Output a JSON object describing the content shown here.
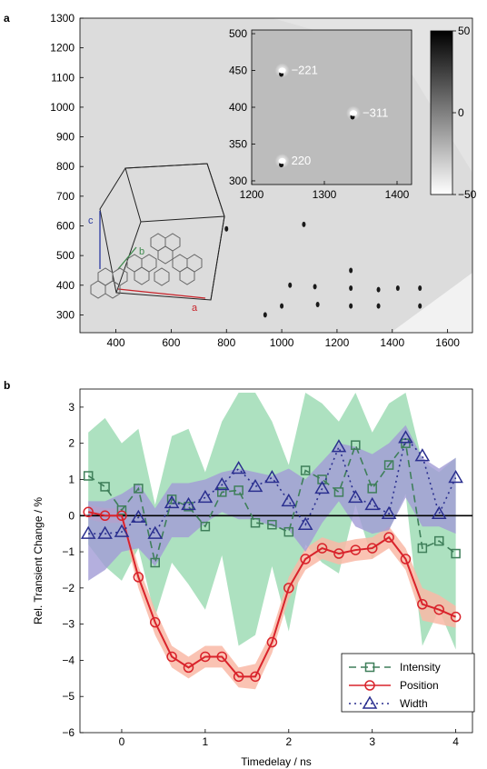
{
  "chart_data": [
    {
      "panel": "a",
      "type": "heatmap",
      "x_ticks": [
        400,
        600,
        800,
        1000,
        1200,
        1400,
        1600
      ],
      "y_ticks": [
        300,
        400,
        500,
        600,
        700,
        800,
        900,
        1000,
        1100,
        1200,
        1300
      ],
      "xlim": [
        270,
        1690
      ],
      "ylim": [
        240,
        1300
      ],
      "unit_cell_axes": [
        "a",
        "b",
        "c"
      ],
      "spots": [
        {
          "x": 1250,
          "y": 450
        },
        {
          "x": 1250,
          "y": 390
        },
        {
          "x": 1250,
          "y": 330
        },
        {
          "x": 1350,
          "y": 385
        },
        {
          "x": 1350,
          "y": 330
        },
        {
          "x": 1500,
          "y": 390
        },
        {
          "x": 1500,
          "y": 330
        },
        {
          "x": 1420,
          "y": 390
        },
        {
          "x": 1130,
          "y": 335
        },
        {
          "x": 1000,
          "y": 330
        },
        {
          "x": 940,
          "y": 300
        },
        {
          "x": 1030,
          "y": 400
        },
        {
          "x": 1120,
          "y": 395
        },
        {
          "x": 800,
          "y": 590
        },
        {
          "x": 1080,
          "y": 605
        }
      ],
      "inset": {
        "x_ticks": [
          1200,
          1300,
          1400
        ],
        "y_ticks": [
          300,
          350,
          400,
          450,
          500
        ],
        "xlim": [
          1200,
          1420
        ],
        "ylim": [
          295,
          505
        ],
        "peaks": [
          {
            "label": "−221",
            "x": 1242,
            "y": 450
          },
          {
            "label": "−311",
            "x": 1340,
            "y": 392
          },
          {
            "label": "220",
            "x": 1242,
            "y": 327
          }
        ]
      },
      "colorbar": {
        "ticks": [
          50,
          0,
          -50
        ],
        "tick_labels": [
          "50",
          "0",
          "−50"
        ],
        "range": [
          -50,
          50
        ]
      }
    },
    {
      "panel": "b",
      "type": "line",
      "xlabel": "Timedelay / ns",
      "ylabel": "Rel. Transient Change / %",
      "xlim": [
        -0.5,
        4.2
      ],
      "ylim": [
        -6,
        3.5
      ],
      "x_ticks": [
        0,
        1,
        2,
        3,
        4
      ],
      "y_ticks": [
        -6,
        -5,
        -4,
        -3,
        -2,
        -1,
        0,
        1,
        2,
        3
      ],
      "legend_position": "bottom-right",
      "x": [
        -0.4,
        -0.2,
        0,
        0.2,
        0.4,
        0.6,
        0.8,
        1.0,
        1.2,
        1.4,
        1.6,
        1.8,
        2.0,
        2.2,
        2.4,
        2.6,
        2.8,
        3.0,
        3.2,
        3.4,
        3.6,
        3.8,
        4.0
      ],
      "series": [
        {
          "name": "Intensity",
          "color": "#3f7f5a",
          "band_color": "#9fdcb5",
          "marker": "square",
          "values": [
            1.1,
            0.8,
            0.15,
            0.75,
            -1.3,
            0.45,
            0.25,
            -0.3,
            0.65,
            0.7,
            -0.2,
            -0.25,
            -0.45,
            1.25,
            1.0,
            0.65,
            1.95,
            0.75,
            1.4,
            2.0,
            -0.9,
            -0.7,
            -1.05
          ],
          "band_upper": [
            2.3,
            2.7,
            2.0,
            2.4,
            0.3,
            2.2,
            2.4,
            1.2,
            2.6,
            3.4,
            3.4,
            2.6,
            1.4,
            3.4,
            3.1,
            2.6,
            3.4,
            2.3,
            3.1,
            3.4,
            1.5,
            1.2,
            1.6
          ],
          "band_lower": [
            -0.8,
            -1.4,
            -1.8,
            -0.9,
            -2.8,
            -1.3,
            -1.9,
            -2.6,
            -1.1,
            -3.6,
            -3.3,
            -1.4,
            -3.2,
            -0.8,
            -1.3,
            -1.6,
            0.3,
            -1.2,
            -0.4,
            0.6,
            -3.6,
            -2.6,
            -3.7
          ]
        },
        {
          "name": "Position",
          "color": "#d9232b",
          "band_color": "#f9b8a6",
          "marker": "circle",
          "values": [
            0.1,
            0.0,
            0.0,
            -1.7,
            -2.95,
            -3.9,
            -4.2,
            -3.9,
            -3.9,
            -4.45,
            -4.45,
            -3.5,
            -2.0,
            -1.2,
            -0.9,
            -1.05,
            -0.95,
            -0.9,
            -0.6,
            -1.2,
            -2.45,
            -2.6,
            -2.8
          ],
          "band_upper": [
            0.3,
            0.2,
            0.2,
            -1.4,
            -2.6,
            -3.6,
            -3.9,
            -3.6,
            -3.6,
            -4.2,
            -4.1,
            -3.2,
            -1.7,
            -0.9,
            -0.6,
            -0.75,
            -0.65,
            -0.6,
            -0.3,
            -0.9,
            -2.0,
            -2.2,
            -2.5
          ],
          "band_lower": [
            -0.1,
            -0.2,
            -0.2,
            -2.0,
            -3.3,
            -4.2,
            -4.5,
            -4.2,
            -4.2,
            -4.75,
            -4.8,
            -3.8,
            -2.3,
            -1.5,
            -1.2,
            -1.35,
            -1.25,
            -1.2,
            -0.9,
            -1.5,
            -2.9,
            -3.0,
            -3.1
          ]
        },
        {
          "name": "Width",
          "color": "#2a2f8f",
          "band_color": "#a19bd6",
          "marker": "triangle",
          "values": [
            -0.5,
            -0.5,
            -0.45,
            -0.05,
            -0.5,
            0.35,
            0.3,
            0.5,
            0.85,
            1.3,
            0.8,
            1.05,
            0.4,
            -0.25,
            0.75,
            1.9,
            0.5,
            0.3,
            0.05,
            2.15,
            1.65,
            0.05,
            1.05
          ],
          "band_upper": [
            0.4,
            0.4,
            0.6,
            0.9,
            0.2,
            0.9,
            0.9,
            1.0,
            1.2,
            1.3,
            1.2,
            1.1,
            1.3,
            1.0,
            1.5,
            2.0,
            1.9,
            1.7,
            2.0,
            2.5,
            1.6,
            1.3,
            1.6
          ],
          "band_lower": [
            -1.8,
            -1.5,
            -1.0,
            -0.9,
            -1.4,
            -0.6,
            -0.6,
            -0.2,
            0.1,
            -0.1,
            -0.1,
            -0.3,
            -0.4,
            -1.0,
            -0.2,
            0.4,
            -0.3,
            -0.5,
            -0.4,
            0.5,
            -0.3,
            -0.3,
            -0.5
          ]
        }
      ]
    }
  ]
}
